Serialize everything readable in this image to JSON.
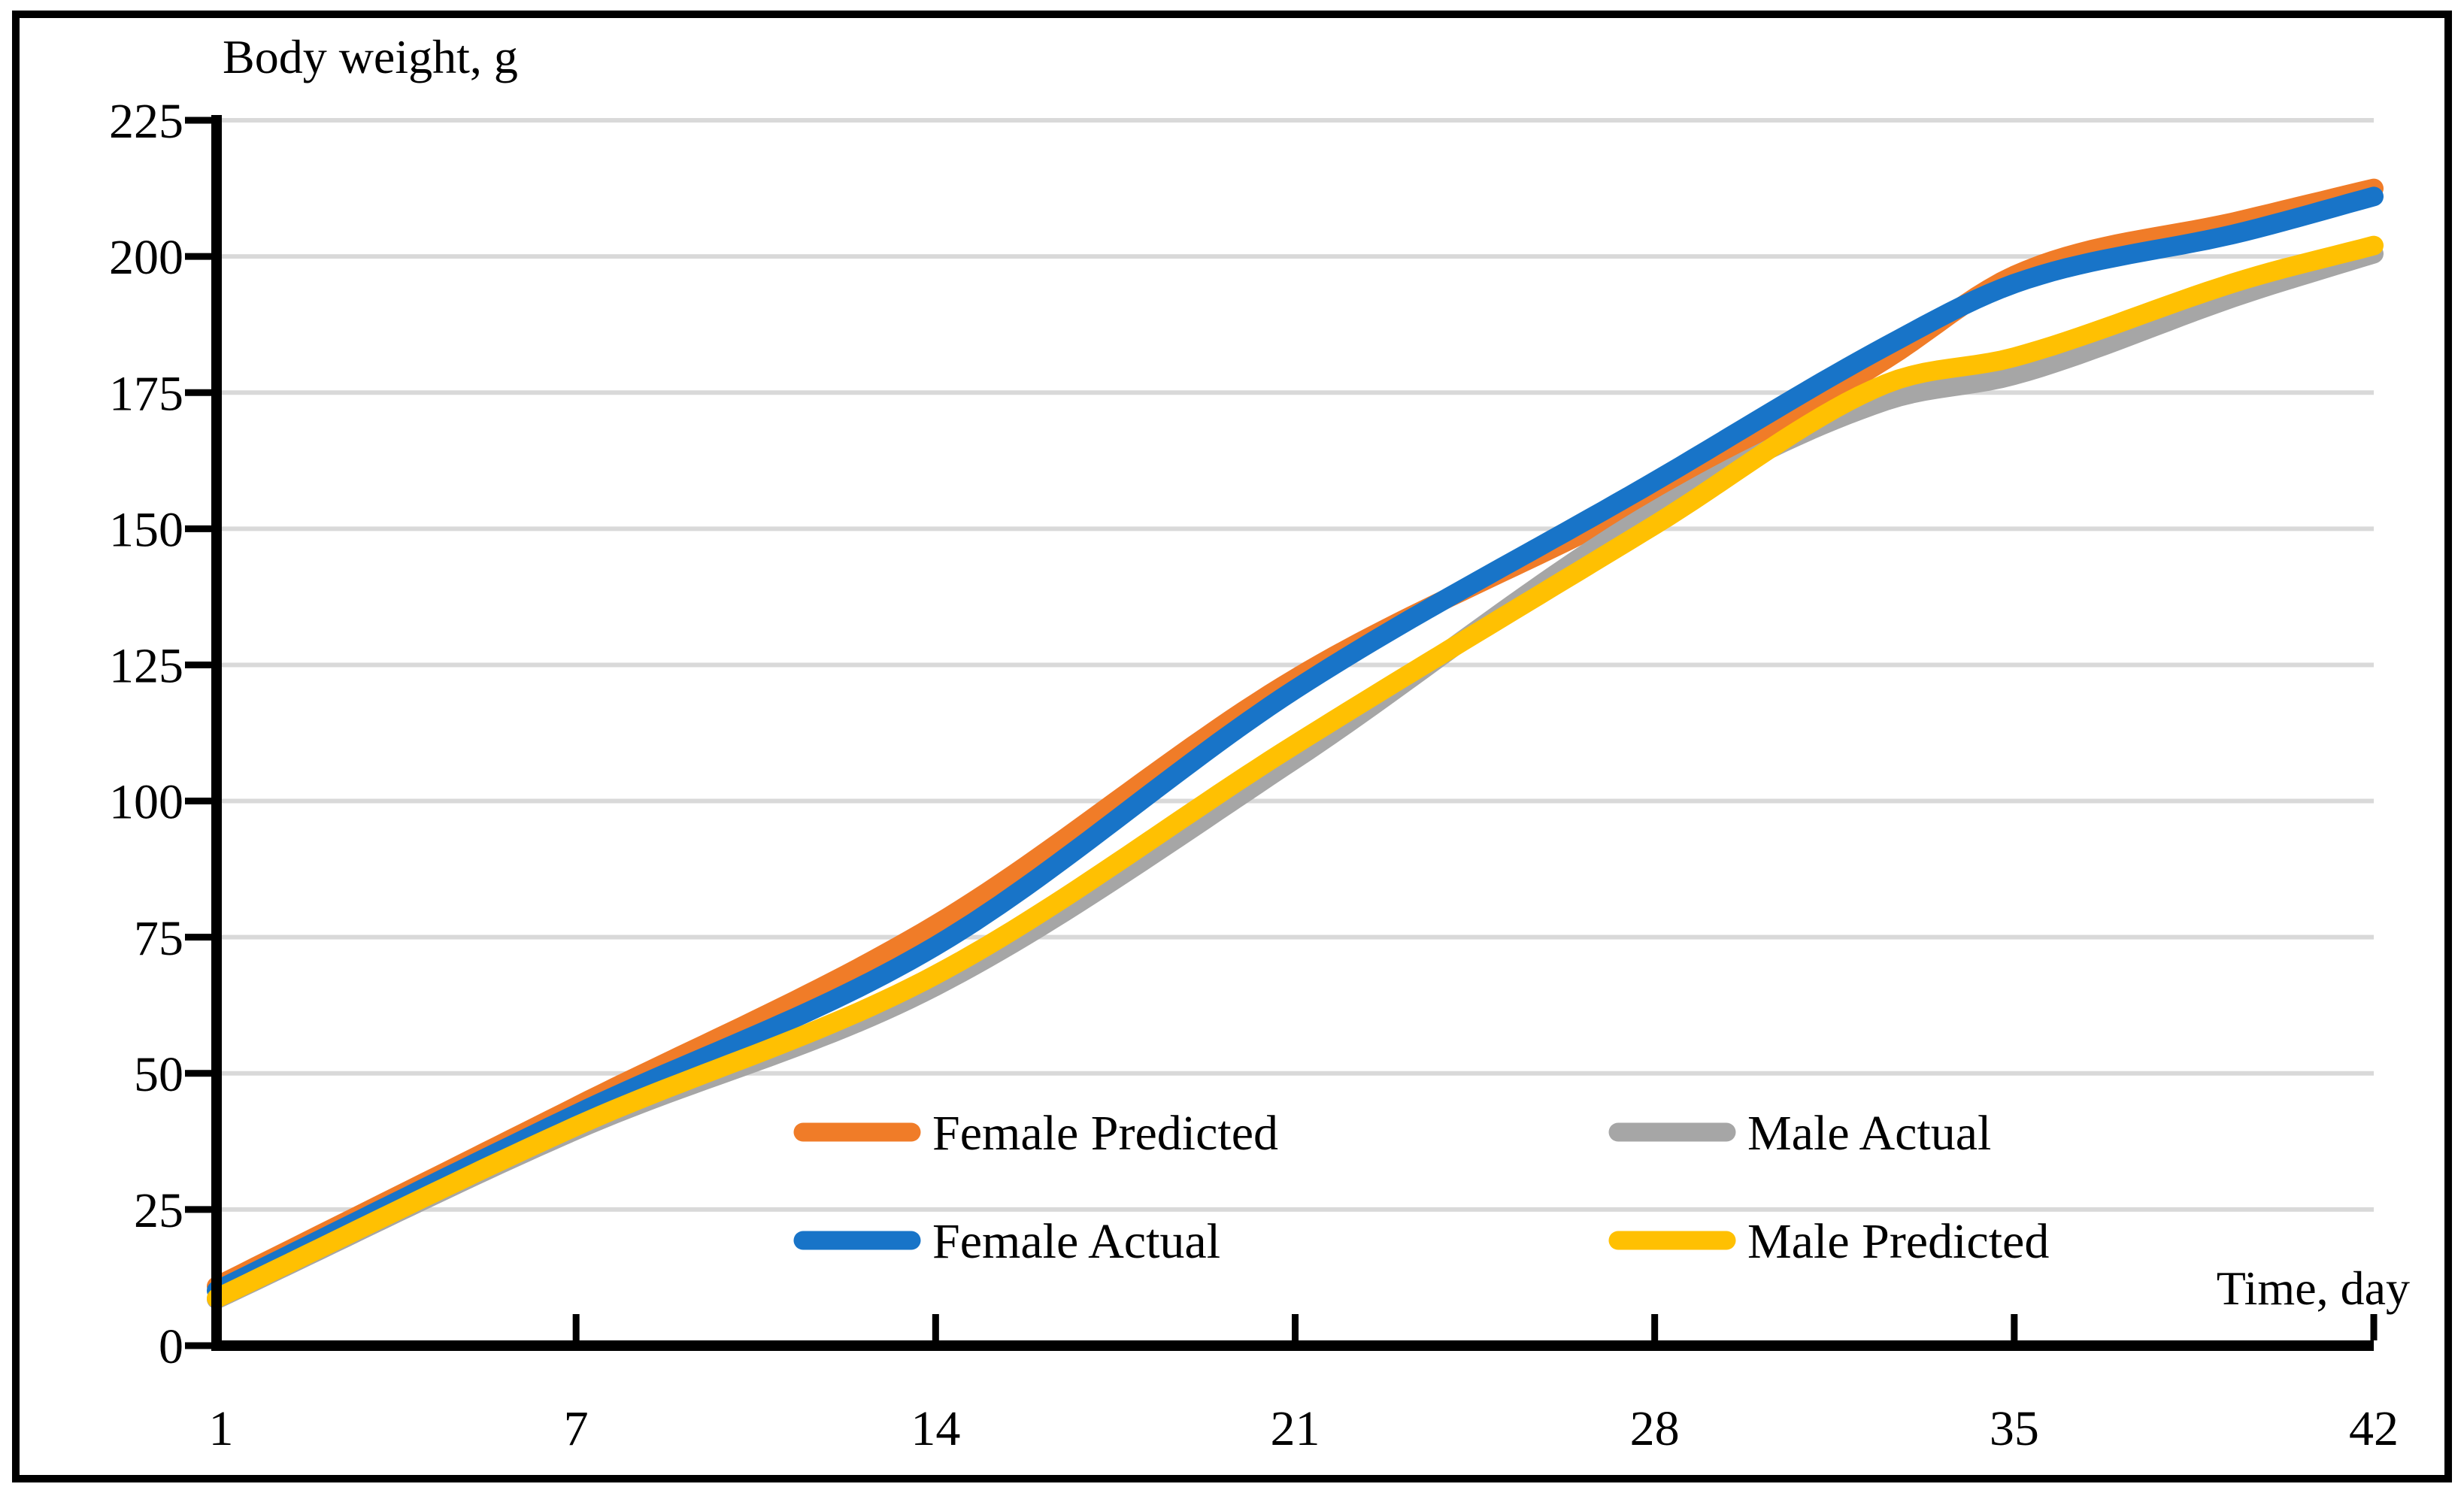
{
  "frame": {
    "background": "#FFFFFF",
    "border_color": "#000000",
    "axis_color": "#000000"
  },
  "chart_data": {
    "type": "line",
    "title": "",
    "ylabel": "Body weight, g",
    "xlabel": "Time, day",
    "grid": {
      "horizontal": true,
      "vertical": false,
      "color": "#D9D9D9"
    },
    "x_axis": {
      "ticks": [
        1,
        7,
        14,
        21,
        28,
        35,
        42
      ],
      "range_days": 42
    },
    "y_axis": {
      "min": 0,
      "max": 225,
      "tick_interval": 25,
      "ticks": [
        0,
        25,
        50,
        75,
        100,
        125,
        150,
        175,
        200,
        225
      ]
    },
    "x": [
      1,
      7,
      14,
      21,
      28,
      32.5,
      35,
      39.5,
      42
    ],
    "series": [
      {
        "name": "Female Predicted",
        "color": "#F07C28",
        "values": [
          10.9,
          43.9,
          77.3,
          122.5,
          156.0,
          181.1,
          196.5,
          206.8,
          212.5
        ]
      },
      {
        "name": "Female Actual",
        "color": "#1874C8",
        "values": [
          10.1,
          42.5,
          73.4,
          120.5,
          158.7,
          183.5,
          195.0,
          204.6,
          211.0
        ]
      },
      {
        "name": "Male Actual",
        "color": "#A6A6A6",
        "values": [
          8.5,
          39.6,
          66.0,
          107.7,
          153.3,
          173.5,
          178.2,
          193.2,
          200.5
        ]
      },
      {
        "name": "Male Predicted",
        "color": "#FFC002",
        "values": [
          8.7,
          40.3,
          68.1,
          110.4,
          150.7,
          176.6,
          181.5,
          195.8,
          202.0
        ]
      }
    ],
    "legend": {
      "position": "inside-bottom",
      "columns": [
        [
          0,
          1
        ],
        [
          2,
          3
        ]
      ]
    }
  }
}
